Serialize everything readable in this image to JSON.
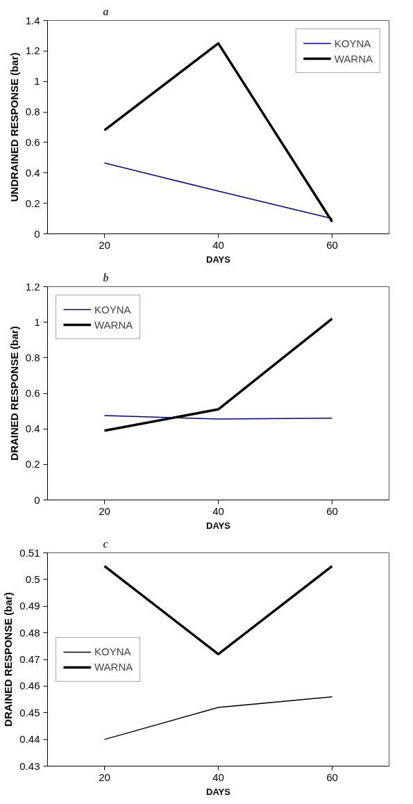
{
  "chart_data": [
    {
      "type": "line",
      "title": "a",
      "xlabel": "DAYS",
      "ylabel": "UNDRAINED RESPONSE (bar)",
      "categories": [
        "20",
        "40",
        "60"
      ],
      "ylim": [
        0,
        1.4
      ],
      "yticks": [
        0,
        0.2,
        0.4,
        0.6,
        0.8,
        1,
        1.2,
        1.4
      ],
      "grid": false,
      "legend": "top right",
      "series": [
        {
          "name": "KOYNA",
          "color": "#00008b",
          "values": [
            0.465,
            0.28,
            0.1
          ]
        },
        {
          "name": "WARNA",
          "color": "#000000",
          "values": [
            0.68,
            1.25,
            0.08
          ]
        }
      ]
    },
    {
      "type": "line",
      "title": "b",
      "xlabel": "DAYS",
      "ylabel": "DRAINED RESPONSE (bar)",
      "categories": [
        "20",
        "40",
        "60"
      ],
      "ylim": [
        0,
        1.2
      ],
      "yticks": [
        0,
        0.2,
        0.4,
        0.6,
        0.8,
        1,
        1.2
      ],
      "grid": false,
      "legend": "top left",
      "series": [
        {
          "name": "KOYNA",
          "color": "#00008b",
          "values": [
            0.475,
            0.455,
            0.46
          ]
        },
        {
          "name": "WARNA",
          "color": "#000000",
          "values": [
            0.39,
            0.51,
            1.02
          ]
        }
      ]
    },
    {
      "type": "line",
      "title": "c",
      "xlabel": "DAYS",
      "ylabel": "DRAINED RESPONSE (bar)",
      "categories": [
        "20",
        "40",
        "60"
      ],
      "ylim": [
        0.43,
        0.51
      ],
      "yticks": [
        0.43,
        0.44,
        0.45,
        0.46,
        0.47,
        0.48,
        0.49,
        0.5,
        0.51
      ],
      "grid": false,
      "legend": "left",
      "series": [
        {
          "name": "KOYNA",
          "color": "#000000",
          "values": [
            0.44,
            0.452,
            0.456
          ]
        },
        {
          "name": "WARNA",
          "color": "#000000",
          "values": [
            0.505,
            0.472,
            0.505
          ]
        }
      ]
    }
  ]
}
